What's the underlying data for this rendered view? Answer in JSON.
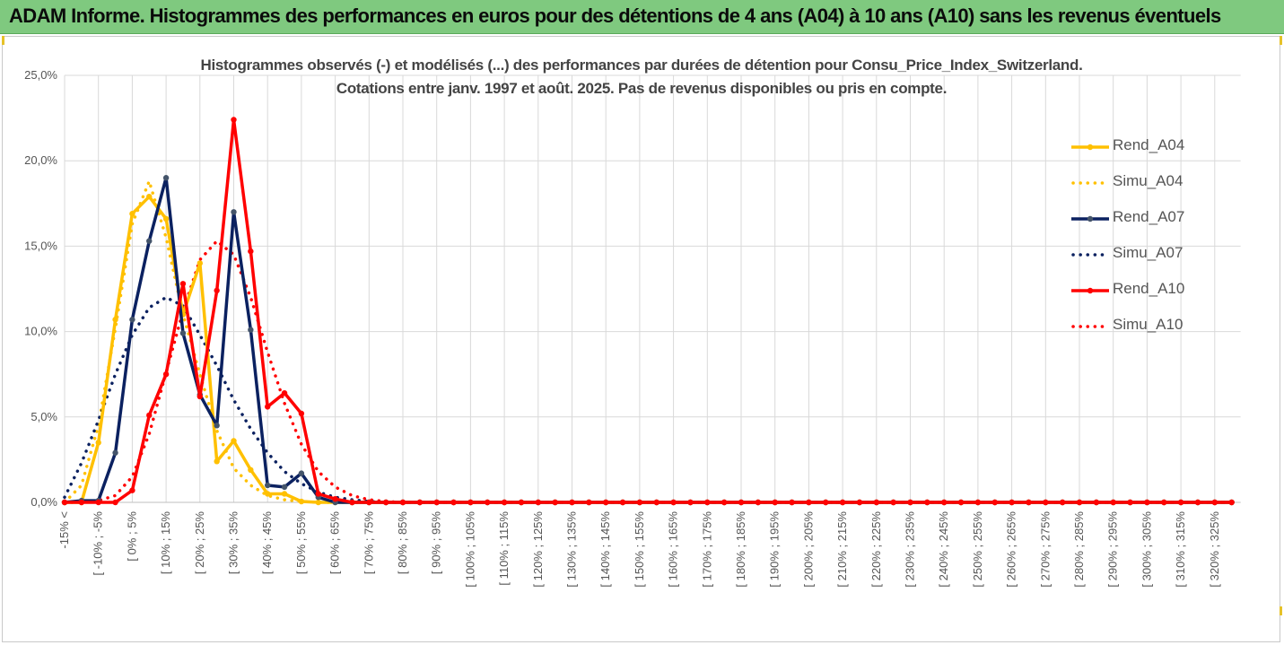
{
  "banner": {
    "title": "ADAM Informe. Histogrammes des performances en euros pour des détentions de 4 ans (A04) à 10 ans (A10) sans les revenus éventuels",
    "color": "#7fc97f"
  },
  "chart_data": {
    "type": "line",
    "title_line1": "Histogrammes observés (-) et modélisés (...) des performances par durées de détention pour Consu_Price_Index_Switzerland.",
    "title_line2": "Cotations entre janv. 1997 et août. 2025. Pas de revenus disponibles ou pris en compte.",
    "ylim": [
      0,
      25
    ],
    "yticks": [
      "0,0%",
      "5,0%",
      "10,0%",
      "15,0%",
      "20,0%",
      "25,0%"
    ],
    "grid": true,
    "legend_position": "right",
    "categories": [
      "-15% <",
      "[ -15% ; -10% [",
      "[ -10% ; -5% [",
      "[ -5% ; 0% [",
      "[ 0% ; 5% [",
      "[ 5% ; 10% [",
      "[ 10% ; 15% [",
      "[ 15% ; 20% [",
      "[ 20% ; 25% [",
      "[ 25% ; 30% [",
      "[ 30% ; 35% [",
      "[ 35% ; 40% [",
      "[ 40% ; 45% [",
      "[ 45% ; 50% [",
      "[ 50% ; 55% [",
      "[ 55% ; 60% [",
      "[ 60% ; 65% [",
      "[ 65% ; 70% [",
      "[ 70% ; 75% [",
      "[ 75% ; 80% [",
      "[ 80% ; 85% [",
      "[ 85% ; 90% [",
      "[ 90% ; 95% [",
      "[ 95% ; 100% [",
      "[ 100% ; 105% [",
      "[ 105% ; 110% [",
      "[ 110% ; 115% [",
      "[ 115% ; 120% [",
      "[ 120% ; 125% [",
      "[ 125% ; 130% [",
      "[ 130% ; 135% [",
      "[ 135% ; 140% [",
      "[ 140% ; 145% [",
      "[ 145% ; 150% [",
      "[ 150% ; 155% [",
      "[ 155% ; 160% [",
      "[ 160% ; 165% [",
      "[ 165% ; 170% [",
      "[ 170% ; 175% [",
      "[ 175% ; 180% [",
      "[ 180% ; 185% [",
      "[ 185% ; 190% [",
      "[ 190% ; 195% [",
      "[ 195% ; 200% [",
      "[ 200% ; 205% [",
      "[ 205% ; 210% [",
      "[ 210% ; 215% [",
      "[ 215% ; 220% [",
      "[ 220% ; 225% [",
      "[ 225% ; 230% [",
      "[ 230% ; 235% [",
      "[ 235% ; 240% [",
      "[ 240% ; 245% [",
      "[ 245% ; 250% [",
      "[ 250% ; 255% [",
      "[ 255% ; 260% [",
      "[ 260% ; 265% [",
      "[ 265% ; 270% [",
      "[ 270% ; 275% [",
      "[ 275% ; 280% [",
      "[ 280% ; 285% [",
      "[ 285% ; 290% [",
      "[ 290% ; 295% [",
      "[ 295% ; 300% [",
      "[ 300% ; 305% [",
      "[ 305% ; 310% [",
      "[ 310% ; 315% [",
      "[ 315% ; 320% [",
      "[ 320% ; 325% [",
      "[ 325% ; 330% ["
    ],
    "visible_tick_labels": [
      "-15% <",
      "[ -10% ; -5%",
      "[ 0% ; 5%",
      "[ 10% ; 15%",
      "[ 20% ; 25%",
      "[ 30% ; 35%",
      "[ 40% ; 45%",
      "[ 50% ; 55%",
      "[ 60% ; 65%",
      "[ 70% ; 75%",
      "[ 80% ; 85%",
      "[ 90% ; 95%",
      "[ 100% ; 105%",
      "[ 110% ; 115%",
      "[ 120% ; 125%",
      "[ 130% ; 135%",
      "[ 140% ; 145%",
      "[ 150% ; 155%",
      "[ 160% ; 165%",
      "[ 170% ; 175%",
      "[ 180% ; 185%",
      "[ 190% ; 195%",
      "[ 200% ; 205%",
      "[ 210% ; 215%",
      "[ 220% ; 225%",
      "[ 230% ; 235%",
      "[ 240% ; 245%",
      "[ 250% ; 255%",
      "[ 260% ; 265%",
      "[ 270% ; 275%",
      "[ 280% ; 285%",
      "[ 290% ; 295%",
      "[ 300% ; 305%",
      "[ 310% ; 315%",
      "[ 320% ; 325%"
    ],
    "series": [
      {
        "name": "Rend_A04",
        "style": "solid",
        "color": "#ffc000",
        "values": [
          0,
          0,
          3.5,
          10.7,
          16.9,
          17.9,
          16.6,
          11.0,
          14.0,
          2.4,
          3.6,
          1.9,
          0.5,
          0.5,
          0.05,
          0,
          0,
          0,
          0,
          0,
          0,
          0,
          0,
          0,
          0,
          0,
          0,
          0,
          0,
          0,
          0,
          0,
          0,
          0,
          0,
          0,
          0,
          0,
          0,
          0,
          0,
          0,
          0,
          0,
          0,
          0,
          0,
          0,
          0,
          0,
          0,
          0,
          0,
          0,
          0,
          0,
          0,
          0,
          0,
          0,
          0,
          0,
          0,
          0,
          0,
          0,
          0,
          0,
          0,
          0
        ]
      },
      {
        "name": "Simu_A04",
        "style": "dotted",
        "color": "#ffc000",
        "values": [
          0,
          1.0,
          4.5,
          10.2,
          16.3,
          18.8,
          15.5,
          11.0,
          7.5,
          4.2,
          2.0,
          1.0,
          0.4,
          0.15,
          0.05,
          0,
          0,
          0,
          0,
          0,
          0,
          0,
          0,
          0,
          0,
          0,
          0,
          0,
          0,
          0,
          0,
          0,
          0,
          0,
          0,
          0,
          0,
          0,
          0,
          0,
          0,
          0,
          0,
          0,
          0,
          0,
          0,
          0,
          0,
          0,
          0,
          0,
          0,
          0,
          0,
          0,
          0,
          0,
          0,
          0,
          0,
          0,
          0,
          0,
          0,
          0,
          0,
          0,
          0,
          0
        ]
      },
      {
        "name": "Rend_A07",
        "style": "solid",
        "color": "#0b2160",
        "values": [
          0,
          0.1,
          0.1,
          2.9,
          10.7,
          15.3,
          19.0,
          9.9,
          6.3,
          4.5,
          17.0,
          10.1,
          1.0,
          0.9,
          1.7,
          0.3,
          0,
          0,
          0,
          0,
          0,
          0,
          0,
          0,
          0,
          0,
          0,
          0,
          0,
          0,
          0,
          0,
          0,
          0,
          0,
          0,
          0,
          0,
          0,
          0,
          0,
          0,
          0,
          0,
          0,
          0,
          0,
          0,
          0,
          0,
          0,
          0,
          0,
          0,
          0,
          0,
          0,
          0,
          0,
          0,
          0,
          0,
          0,
          0,
          0,
          0,
          0,
          0,
          0,
          0
        ]
      },
      {
        "name": "Simu_A07",
        "style": "dotted",
        "color": "#0b2160",
        "values": [
          0.3,
          2.3,
          4.8,
          7.5,
          9.8,
          11.4,
          12.0,
          11.5,
          9.8,
          8.0,
          6.0,
          4.3,
          2.9,
          1.8,
          1.1,
          0.6,
          0.3,
          0.15,
          0.05,
          0,
          0,
          0,
          0,
          0,
          0,
          0,
          0,
          0,
          0,
          0,
          0,
          0,
          0,
          0,
          0,
          0,
          0,
          0,
          0,
          0,
          0,
          0,
          0,
          0,
          0,
          0,
          0,
          0,
          0,
          0,
          0,
          0,
          0,
          0,
          0,
          0,
          0,
          0,
          0,
          0,
          0,
          0,
          0,
          0,
          0,
          0,
          0,
          0,
          0,
          0
        ]
      },
      {
        "name": "Rend_A10",
        "style": "solid",
        "color": "#ff0000",
        "values": [
          0,
          0,
          0,
          0,
          0.7,
          5.1,
          7.5,
          12.8,
          6.2,
          12.4,
          22.4,
          14.7,
          5.6,
          6.4,
          5.2,
          0.5,
          0.2,
          0,
          0,
          0,
          0,
          0,
          0,
          0,
          0,
          0,
          0,
          0,
          0,
          0,
          0,
          0,
          0,
          0,
          0,
          0,
          0,
          0,
          0,
          0,
          0,
          0,
          0,
          0,
          0,
          0,
          0,
          0,
          0,
          0,
          0,
          0,
          0,
          0,
          0,
          0,
          0,
          0,
          0,
          0,
          0,
          0,
          0,
          0,
          0,
          0,
          0,
          0,
          0,
          0
        ]
      },
      {
        "name": "Simu_A10",
        "style": "dotted",
        "color": "#ff0000",
        "values": [
          0,
          0,
          0.1,
          0.4,
          1.5,
          4.0,
          7.6,
          11.2,
          14.2,
          15.3,
          14.5,
          12.0,
          8.8,
          5.8,
          3.4,
          1.8,
          0.9,
          0.4,
          0.15,
          0.05,
          0,
          0,
          0,
          0,
          0,
          0,
          0,
          0,
          0,
          0,
          0,
          0,
          0,
          0,
          0,
          0,
          0,
          0,
          0,
          0,
          0,
          0,
          0,
          0,
          0,
          0,
          0,
          0,
          0,
          0,
          0,
          0,
          0,
          0,
          0,
          0,
          0,
          0,
          0,
          0,
          0,
          0,
          0,
          0,
          0,
          0,
          0,
          0,
          0,
          0
        ]
      }
    ]
  }
}
